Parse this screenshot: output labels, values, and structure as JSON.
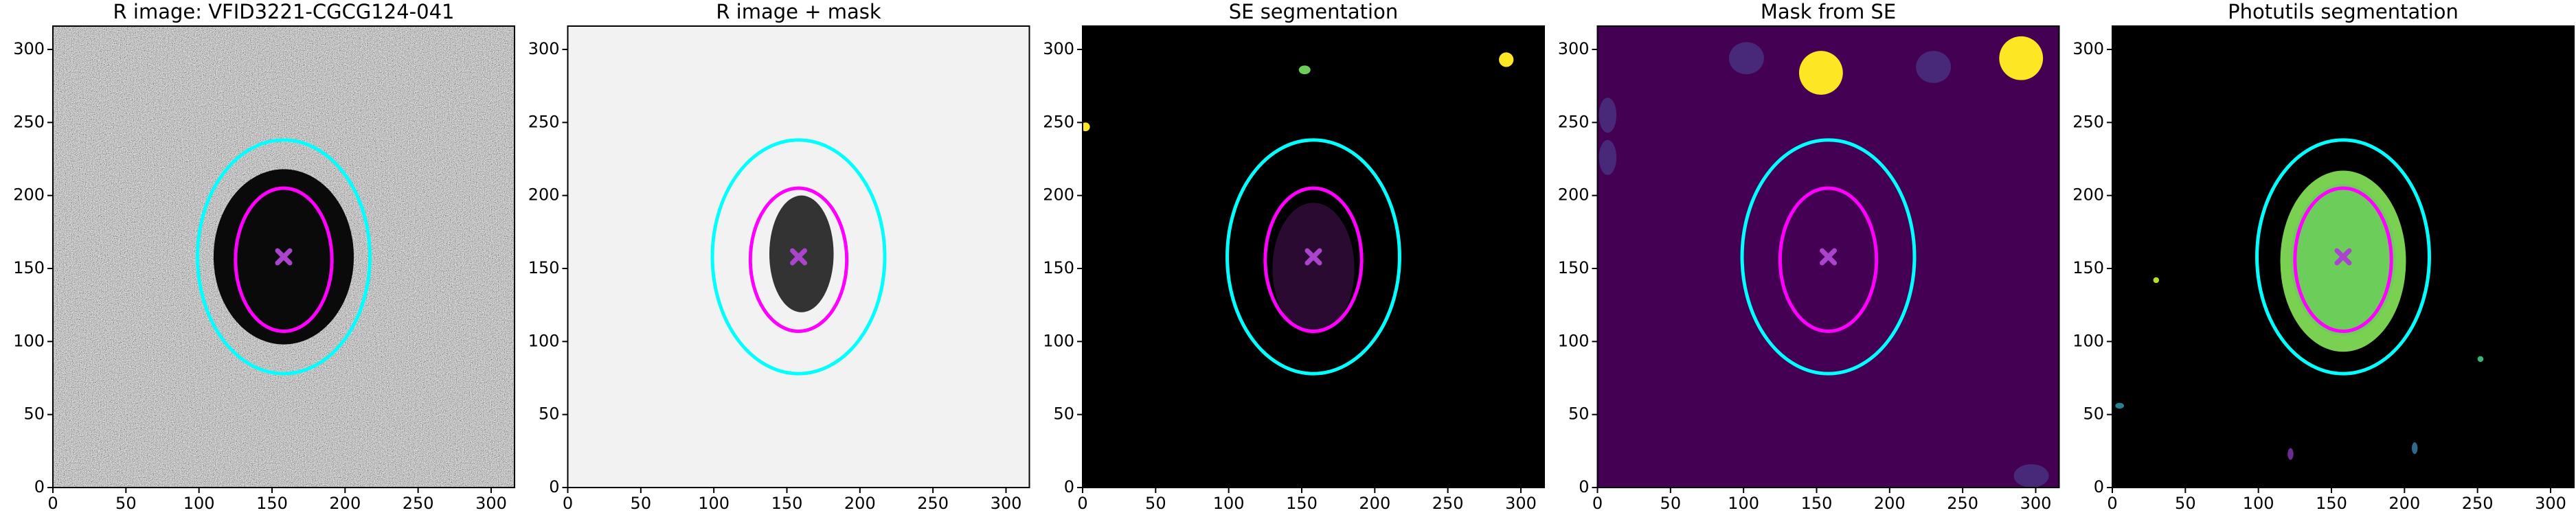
{
  "chart_data": [
    {
      "type": "image",
      "title": "R image: VFID3221-CGCG124-041",
      "background": "noise",
      "xlim": [
        0,
        316
      ],
      "ylim": [
        0,
        316
      ],
      "xticks": [
        0,
        50,
        100,
        150,
        200,
        250,
        300
      ],
      "yticks": [
        0,
        50,
        100,
        150,
        200,
        250,
        300
      ],
      "blobs": [
        {
          "x": 158,
          "y": 158,
          "rx": 48,
          "ry": 60,
          "color": "#000000"
        }
      ],
      "ellipses": [
        {
          "x": 158,
          "y": 158,
          "rx": 59,
          "ry": 80,
          "color": "#00ffff"
        },
        {
          "x": 158,
          "y": 156,
          "rx": 33,
          "ry": 49,
          "color": "#ff00ff"
        }
      ],
      "markers": [
        {
          "x": 158,
          "y": 158,
          "color": "#aa44cc"
        }
      ]
    },
    {
      "type": "image",
      "title": "R image + mask",
      "background": "#f2f2f2",
      "xlim": [
        0,
        316
      ],
      "ylim": [
        0,
        316
      ],
      "xticks": [
        0,
        50,
        100,
        150,
        200,
        250,
        300
      ],
      "yticks": [
        0,
        50,
        100,
        150,
        200,
        250,
        300
      ],
      "blobs": [
        {
          "x": 160,
          "y": 160,
          "rx": 22,
          "ry": 40,
          "color": "#333333"
        }
      ],
      "ellipses": [
        {
          "x": 158,
          "y": 158,
          "rx": 59,
          "ry": 80,
          "color": "#00ffff"
        },
        {
          "x": 158,
          "y": 156,
          "rx": 33,
          "ry": 49,
          "color": "#ff00ff"
        }
      ],
      "markers": [
        {
          "x": 158,
          "y": 158,
          "color": "#aa44cc"
        }
      ]
    },
    {
      "type": "image",
      "title": "SE segmentation",
      "background": "#000000",
      "xlim": [
        0,
        316
      ],
      "ylim": [
        0,
        316
      ],
      "xticks": [
        0,
        50,
        100,
        150,
        200,
        250,
        300
      ],
      "yticks": [
        0,
        50,
        100,
        150,
        200,
        250,
        300
      ],
      "blobs": [
        {
          "x": 290,
          "y": 293,
          "rx": 5,
          "ry": 5,
          "color": "#fde725"
        },
        {
          "x": 152,
          "y": 286,
          "rx": 4,
          "ry": 3,
          "color": "#6ccd5a"
        },
        {
          "x": 2,
          "y": 247,
          "rx": 3,
          "ry": 3,
          "color": "#fde725"
        },
        {
          "x": 158,
          "y": 150,
          "rx": 28,
          "ry": 45,
          "color": "#2a0a30"
        }
      ],
      "ellipses": [
        {
          "x": 158,
          "y": 158,
          "rx": 59,
          "ry": 80,
          "color": "#00ffff"
        },
        {
          "x": 158,
          "y": 156,
          "rx": 33,
          "ry": 49,
          "color": "#ff00ff"
        }
      ],
      "markers": [
        {
          "x": 158,
          "y": 158,
          "color": "#aa44cc"
        }
      ]
    },
    {
      "type": "image",
      "title": "Mask from SE",
      "background": "#440154",
      "xlim": [
        0,
        316
      ],
      "ylim": [
        0,
        316
      ],
      "xticks": [
        0,
        50,
        100,
        150,
        200,
        250,
        300
      ],
      "yticks": [
        0,
        50,
        100,
        150,
        200,
        250,
        300
      ],
      "blobs": [
        {
          "x": 290,
          "y": 294,
          "rx": 15,
          "ry": 15,
          "color": "#fde725"
        },
        {
          "x": 153,
          "y": 284,
          "rx": 15,
          "ry": 15,
          "color": "#fde725"
        },
        {
          "x": 230,
          "y": 288,
          "rx": 12,
          "ry": 11,
          "color": "#482878"
        },
        {
          "x": 102,
          "y": 294,
          "rx": 12,
          "ry": 11,
          "color": "#482878"
        },
        {
          "x": 7,
          "y": 255,
          "rx": 6,
          "ry": 12,
          "color": "#482878"
        },
        {
          "x": 7,
          "y": 226,
          "rx": 6,
          "ry": 12,
          "color": "#482878"
        },
        {
          "x": 297,
          "y": 8,
          "rx": 12,
          "ry": 8,
          "color": "#482878"
        }
      ],
      "ellipses": [
        {
          "x": 158,
          "y": 158,
          "rx": 59,
          "ry": 80,
          "color": "#00ffff"
        },
        {
          "x": 158,
          "y": 156,
          "rx": 33,
          "ry": 49,
          "color": "#ff00ff"
        }
      ],
      "markers": [
        {
          "x": 158,
          "y": 158,
          "color": "#aa44cc"
        }
      ]
    },
    {
      "type": "image",
      "title": "Photutils segmentation",
      "background": "#000000",
      "xlim": [
        0,
        316
      ],
      "ylim": [
        0,
        316
      ],
      "xticks": [
        0,
        50,
        100,
        150,
        200,
        250,
        300
      ],
      "yticks": [
        0,
        50,
        100,
        150,
        200,
        250,
        300
      ],
      "blobs": [
        {
          "x": 158,
          "y": 155,
          "rx": 43,
          "ry": 62,
          "color": "#7ad151"
        },
        {
          "x": 158,
          "y": 156,
          "rx": 36,
          "ry": 52,
          "color": "#6ccd5a"
        },
        {
          "x": 30,
          "y": 142,
          "rx": 2,
          "ry": 2,
          "color": "#b5de2b"
        },
        {
          "x": 252,
          "y": 88,
          "rx": 2,
          "ry": 2,
          "color": "#35b779"
        },
        {
          "x": 207,
          "y": 27,
          "rx": 2,
          "ry": 4,
          "color": "#31688e"
        },
        {
          "x": 122,
          "y": 23,
          "rx": 2,
          "ry": 4,
          "color": "#6a2c8e"
        },
        {
          "x": 5,
          "y": 56,
          "rx": 3,
          "ry": 2,
          "color": "#26828e"
        }
      ],
      "ellipses": [
        {
          "x": 158,
          "y": 158,
          "rx": 59,
          "ry": 80,
          "color": "#00ffff"
        },
        {
          "x": 158,
          "y": 156,
          "rx": 33,
          "ry": 49,
          "color": "#ff00ff"
        }
      ],
      "markers": [
        {
          "x": 158,
          "y": 158,
          "color": "#aa44cc"
        }
      ]
    }
  ]
}
